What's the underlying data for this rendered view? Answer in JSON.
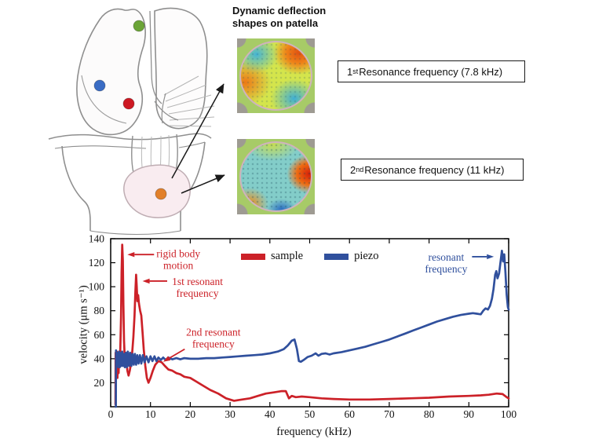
{
  "figure": {
    "title_lines": [
      "Dynamic deflection",
      "shapes on patella"
    ],
    "resonance_boxes": [
      {
        "number": "1",
        "ordinal": "st",
        "text": " Resonance frequency (7.8 kHz)"
      },
      {
        "number": "2",
        "ordinal": "nd",
        "text": " Resonance frequency (11 kHz)"
      }
    ],
    "knee_markers": [
      {
        "name": "femur-top-marker",
        "color": "#6ba437"
      },
      {
        "name": "medial-condyle-marker",
        "color": "#3a6cc4"
      },
      {
        "name": "joint-center-marker",
        "color": "#cd1822"
      },
      {
        "name": "patella-marker",
        "color": "#e2802a"
      }
    ]
  },
  "chart_data": {
    "type": "line",
    "xlabel": "frequency (kHz)",
    "ylabel": "velocity (μm s⁻¹)",
    "xlim": [
      0,
      100
    ],
    "ylim": [
      0,
      140
    ],
    "xticks": [
      0,
      10,
      20,
      30,
      40,
      50,
      60,
      70,
      80,
      90,
      100
    ],
    "yticks": [
      20,
      40,
      60,
      80,
      100,
      120,
      140
    ],
    "grid": false,
    "legend_position": "top-center-inside",
    "series": [
      {
        "name": "sample",
        "color": "#cc2128",
        "points": [
          [
            1.2,
            2
          ],
          [
            1.25,
            45
          ],
          [
            1.4,
            30
          ],
          [
            1.55,
            46
          ],
          [
            1.7,
            24
          ],
          [
            1.85,
            42
          ],
          [
            2.0,
            28
          ],
          [
            2.15,
            44
          ],
          [
            2.3,
            34
          ],
          [
            2.45,
            52
          ],
          [
            2.6,
            75
          ],
          [
            2.75,
            112
          ],
          [
            2.9,
            135
          ],
          [
            3.05,
            122
          ],
          [
            3.2,
            85
          ],
          [
            3.35,
            55
          ],
          [
            3.5,
            44
          ],
          [
            3.65,
            38
          ],
          [
            3.8,
            45
          ],
          [
            4.0,
            36
          ],
          [
            4.2,
            30
          ],
          [
            4.5,
            26
          ],
          [
            4.8,
            30
          ],
          [
            5.1,
            36
          ],
          [
            5.4,
            45
          ],
          [
            5.7,
            58
          ],
          [
            6.0,
            76
          ],
          [
            6.2,
            95
          ],
          [
            6.4,
            110
          ],
          [
            6.55,
            100
          ],
          [
            6.7,
            88
          ],
          [
            6.9,
            93
          ],
          [
            7.1,
            86
          ],
          [
            7.4,
            80
          ],
          [
            7.7,
            76
          ],
          [
            8.0,
            62
          ],
          [
            8.3,
            48
          ],
          [
            8.7,
            34
          ],
          [
            9.1,
            24
          ],
          [
            9.5,
            20
          ],
          [
            10.0,
            24
          ],
          [
            10.6,
            30
          ],
          [
            11.2,
            35
          ],
          [
            12.0,
            38
          ],
          [
            12.8,
            37
          ],
          [
            13.6,
            34
          ],
          [
            14.5,
            31
          ],
          [
            15.5,
            30
          ],
          [
            16.5,
            28
          ],
          [
            17.5,
            27
          ],
          [
            18.5,
            25
          ],
          [
            20,
            24
          ],
          [
            21.5,
            21
          ],
          [
            23,
            18
          ],
          [
            25,
            14
          ],
          [
            27,
            11
          ],
          [
            29,
            7
          ],
          [
            31,
            5
          ],
          [
            33,
            6
          ],
          [
            35,
            7
          ],
          [
            37,
            9
          ],
          [
            39,
            11
          ],
          [
            41,
            12
          ],
          [
            43,
            13
          ],
          [
            44,
            13
          ],
          [
            44.8,
            7
          ],
          [
            45.5,
            9
          ],
          [
            46.5,
            8
          ],
          [
            48,
            8.5
          ],
          [
            50,
            8
          ],
          [
            53,
            7
          ],
          [
            56,
            6.5
          ],
          [
            60,
            6
          ],
          [
            65,
            6
          ],
          [
            70,
            6.5
          ],
          [
            75,
            7
          ],
          [
            80,
            7.5
          ],
          [
            85,
            8.5
          ],
          [
            90,
            9
          ],
          [
            93,
            9.5
          ],
          [
            95,
            10
          ],
          [
            97,
            11
          ],
          [
            98.5,
            10.5
          ],
          [
            99.5,
            8
          ],
          [
            100,
            7
          ]
        ]
      },
      {
        "name": "piezo",
        "color": "#30509d",
        "points": [
          [
            1.3,
            0
          ],
          [
            1.35,
            47
          ],
          [
            1.5,
            36
          ],
          [
            1.7,
            45
          ],
          [
            1.9,
            33
          ],
          [
            2.1,
            46
          ],
          [
            2.3,
            33
          ],
          [
            2.5,
            45
          ],
          [
            2.7,
            34
          ],
          [
            2.9,
            46
          ],
          [
            3.1,
            34
          ],
          [
            3.3,
            44
          ],
          [
            3.55,
            33
          ],
          [
            3.8,
            45
          ],
          [
            4.05,
            33
          ],
          [
            4.3,
            46
          ],
          [
            4.6,
            34
          ],
          [
            4.9,
            45
          ],
          [
            5.2,
            34
          ],
          [
            5.5,
            44
          ],
          [
            5.8,
            35
          ],
          [
            6.1,
            44
          ],
          [
            6.4,
            35
          ],
          [
            6.7,
            43
          ],
          [
            7.0,
            36
          ],
          [
            7.35,
            43
          ],
          [
            7.7,
            36
          ],
          [
            8.1,
            43
          ],
          [
            8.5,
            37
          ],
          [
            9.0,
            42
          ],
          [
            9.5,
            37
          ],
          [
            10,
            42
          ],
          [
            10.5,
            38
          ],
          [
            11,
            42
          ],
          [
            11.5,
            38
          ],
          [
            12,
            41
          ],
          [
            12.6,
            39
          ],
          [
            13.2,
            41
          ],
          [
            13.8,
            39
          ],
          [
            14.5,
            41
          ],
          [
            15.5,
            39.5
          ],
          [
            16.5,
            40.5
          ],
          [
            17.5,
            39.5
          ],
          [
            18.5,
            40.5
          ],
          [
            20,
            40
          ],
          [
            22,
            40
          ],
          [
            24,
            40.5
          ],
          [
            26,
            40.5
          ],
          [
            28,
            41
          ],
          [
            30,
            41.5
          ],
          [
            32,
            42
          ],
          [
            34,
            42.5
          ],
          [
            36,
            43
          ],
          [
            38,
            43.5
          ],
          [
            40,
            44.5
          ],
          [
            42,
            46
          ],
          [
            43.5,
            48
          ],
          [
            44.5,
            51
          ],
          [
            45.5,
            55
          ],
          [
            46.2,
            56
          ],
          [
            46.8,
            48
          ],
          [
            47.3,
            38
          ],
          [
            47.8,
            37.5
          ],
          [
            48.5,
            39
          ],
          [
            49.5,
            41.5
          ],
          [
            50.5,
            42.5
          ],
          [
            51.5,
            44.5
          ],
          [
            52.2,
            42.5
          ],
          [
            53,
            44
          ],
          [
            54,
            44.5
          ],
          [
            55,
            43.5
          ],
          [
            56,
            44.5
          ],
          [
            58,
            45.5
          ],
          [
            60,
            47
          ],
          [
            62,
            48.5
          ],
          [
            64,
            50
          ],
          [
            66,
            52
          ],
          [
            68,
            54
          ],
          [
            70,
            56
          ],
          [
            72,
            58.5
          ],
          [
            74,
            61
          ],
          [
            76,
            63.5
          ],
          [
            78,
            66
          ],
          [
            80,
            68.5
          ],
          [
            82,
            71
          ],
          [
            84,
            73
          ],
          [
            86,
            75
          ],
          [
            88,
            76.5
          ],
          [
            90,
            77.5
          ],
          [
            91,
            78
          ],
          [
            92,
            77.5
          ],
          [
            93,
            77
          ],
          [
            93.6,
            80
          ],
          [
            94.2,
            82
          ],
          [
            94.8,
            81
          ],
          [
            95.3,
            84
          ],
          [
            95.8,
            90
          ],
          [
            96.2,
            98
          ],
          [
            96.6,
            110
          ],
          [
            96.9,
            113
          ],
          [
            97.2,
            107
          ],
          [
            97.6,
            111
          ],
          [
            98.0,
            122
          ],
          [
            98.3,
            130
          ],
          [
            98.6,
            121
          ],
          [
            98.9,
            127
          ],
          [
            99.2,
            112
          ],
          [
            99.5,
            93
          ],
          [
            99.8,
            83
          ],
          [
            100,
            81
          ]
        ]
      }
    ],
    "legend": {
      "items": [
        {
          "label": "sample",
          "color": "#cc2128"
        },
        {
          "label": "piezo",
          "color": "#30509d"
        }
      ]
    },
    "annotations": [
      {
        "lines": [
          "rigid body",
          "motion"
        ],
        "color": "#cc2128",
        "tx": 17.0,
        "ty": 127.5,
        "arrow": {
          "from": [
            10.9,
            126.8
          ],
          "to": [
            4.2,
            126.8
          ]
        }
      },
      {
        "lines": [
          "1st resonant",
          "frequency"
        ],
        "color": "#cc2128",
        "tx": 21.8,
        "ty": 104.5,
        "arrow": {
          "from": [
            14.2,
            104.7
          ],
          "to": [
            8.0,
            104.7
          ]
        }
      },
      {
        "lines": [
          "2nd resonant",
          "frequency"
        ],
        "color": "#cc2128",
        "tx": 25.8,
        "ty": 62.0,
        "arrow": {
          "from": [
            18.6,
            48.0
          ],
          "to": [
            13.2,
            37.5
          ]
        }
      },
      {
        "lines": [
          "resonant",
          "frequency"
        ],
        "color": "#30509d",
        "tx": 84.3,
        "ty": 124.5,
        "arrow": {
          "from": [
            90.8,
            125.0
          ],
          "to": [
            96.3,
            125.0
          ]
        }
      }
    ]
  }
}
